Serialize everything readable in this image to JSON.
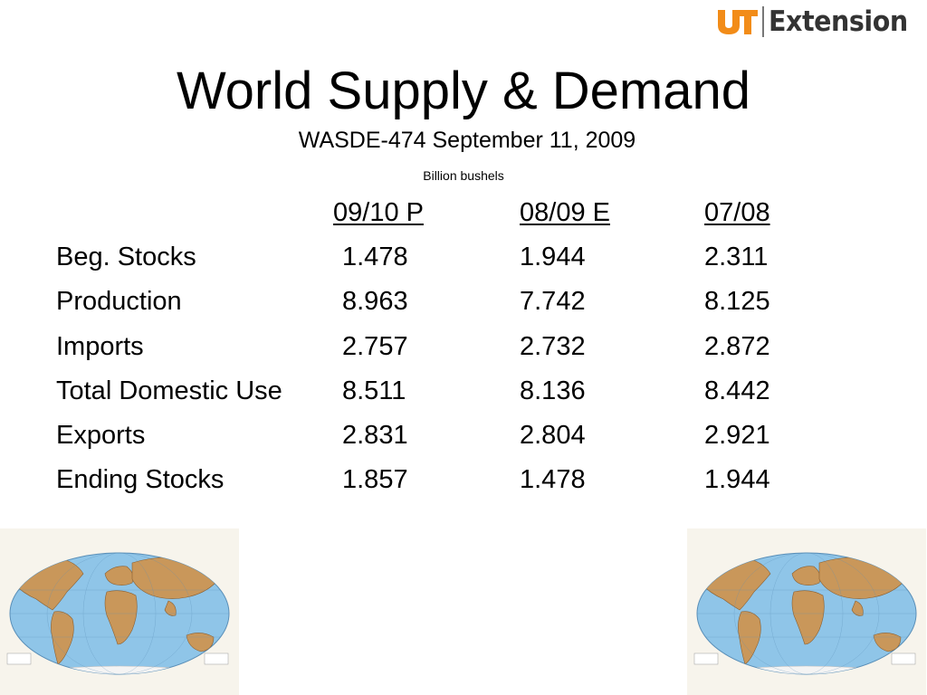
{
  "logo": {
    "text": "Extension",
    "colors": {
      "mark": "#f28c18",
      "text": "#333333"
    }
  },
  "header": {
    "title": "World Supply & Demand",
    "subtitle": "WASDE-474 September 11, 2009",
    "unit": "Billion bushels"
  },
  "table": {
    "columns": [
      "09/10 P",
      "08/09 E",
      "07/08"
    ],
    "rows": [
      {
        "label": "Beg. Stocks",
        "values": [
          "1.478",
          "1.944",
          "2.311"
        ]
      },
      {
        "label": "Production",
        "values": [
          "8.963",
          "7.742",
          "8.125"
        ]
      },
      {
        "label": "Imports",
        "values": [
          "2.757",
          "2.732",
          "2.872"
        ]
      },
      {
        "label": "Total Domestic Use",
        "values": [
          "8.511",
          "8.136",
          "8.442"
        ]
      },
      {
        "label": "Exports",
        "values": [
          "2.831",
          "2.804",
          "2.921"
        ]
      },
      {
        "label": "Ending Stocks",
        "values": [
          "1.857",
          "1.478",
          "1.944"
        ]
      }
    ]
  },
  "images": {
    "left": "world-map",
    "right": "world-map"
  }
}
